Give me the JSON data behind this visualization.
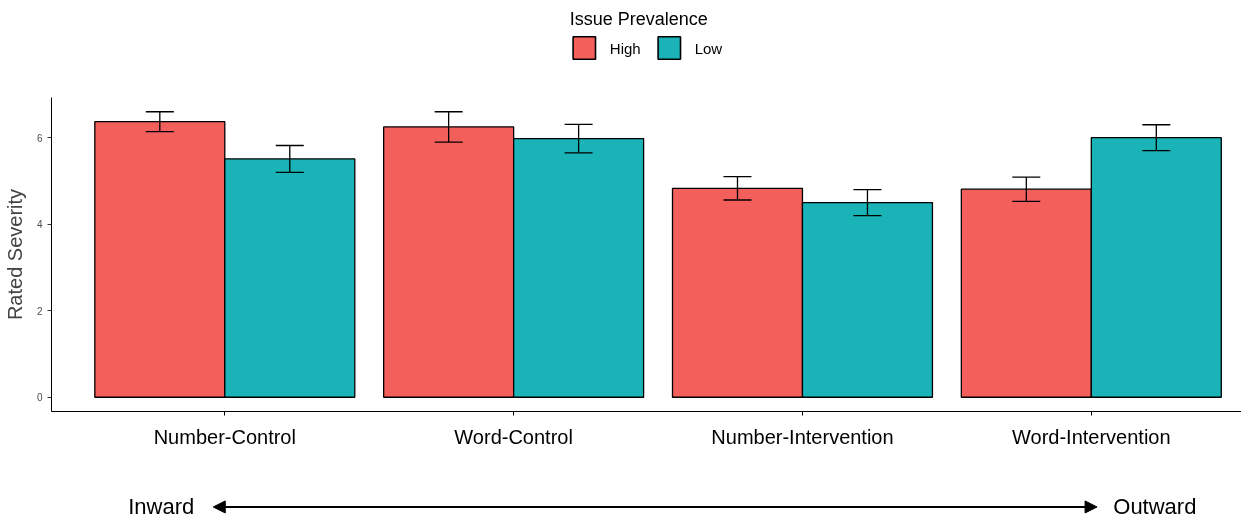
{
  "chart_data": {
    "type": "bar",
    "ylabel": "Rated Severity",
    "legend_title": "Issue Prevalence",
    "categories": [
      "Number-Control",
      "Word-Control",
      "Number-Intervention",
      "Word-Intervention"
    ],
    "series": [
      {
        "name": "High",
        "color": "#f35f5b",
        "values": [
          6.37,
          6.25,
          4.83,
          4.81
        ],
        "errors": [
          0.23,
          0.35,
          0.27,
          0.28
        ]
      },
      {
        "name": "Low",
        "color": "#1ab3b8",
        "values": [
          5.51,
          5.98,
          4.5,
          6.0
        ],
        "errors": [
          0.31,
          0.33,
          0.3,
          0.3
        ]
      }
    ],
    "ylim": [
      -0.33,
      6.93
    ],
    "yticks": [
      0,
      2,
      4,
      6
    ],
    "grid": false,
    "legend": "top",
    "annotations": [
      "Inward",
      "Outward"
    ]
  }
}
